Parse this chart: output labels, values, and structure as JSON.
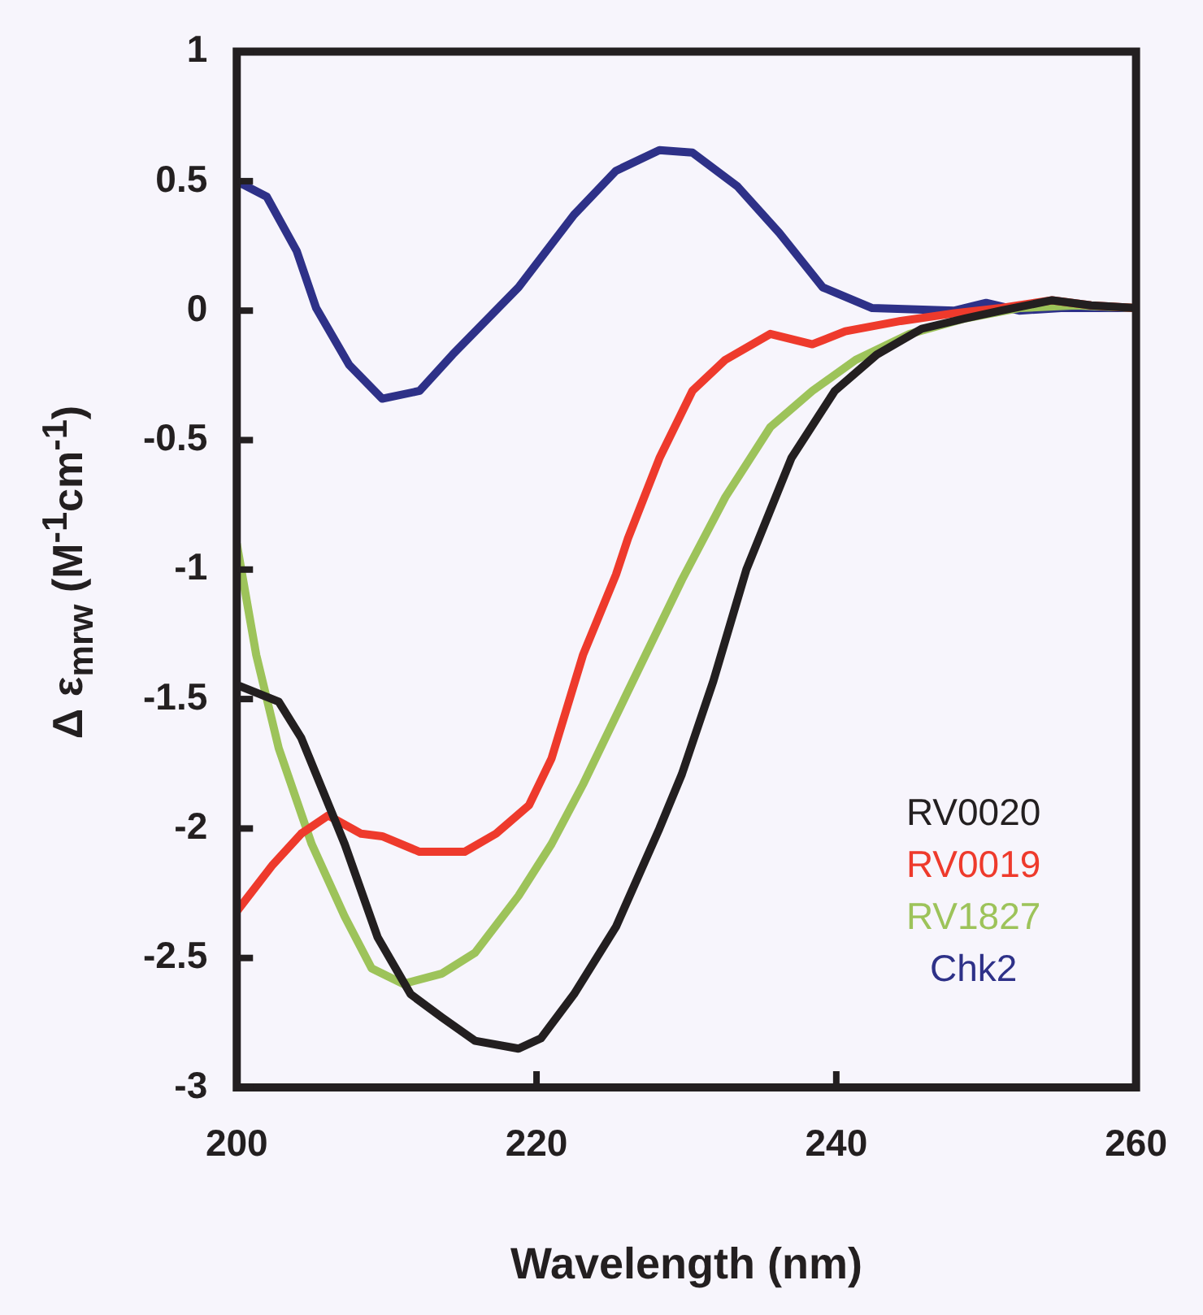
{
  "chart_data": {
    "type": "line",
    "xlabel": "Wavelength (nm)",
    "ylabel": "Δ ε$_{mrw}$ (M$^{-1}$cm$^{-1}$)",
    "xlim": [
      200,
      260
    ],
    "xticks": [
      200,
      220,
      240,
      260
    ],
    "ylim": [
      -3,
      1
    ],
    "yticks": [
      -3,
      -2.5,
      -2,
      -1.5,
      -1,
      -0.5,
      0,
      0.5,
      1
    ],
    "legend": "bottom right",
    "marker": "none",
    "line_style": "solid",
    "series": [
      {
        "name": "RV0020",
        "color": "#231f20",
        "x": [
          200.2,
          202.8,
          204.3,
          207.2,
          209.4,
          211.6,
          213.7,
          215.9,
          218.8,
          220.3,
          222.5,
          225.3,
          228.2,
          229.7,
          231.8,
          234,
          237,
          239.9,
          242.7,
          245.7,
          248.6,
          251,
          254.4,
          257,
          260
        ],
        "values": [
          -1.45,
          -1.51,
          -1.65,
          -2.06,
          -2.42,
          -2.64,
          -2.73,
          -2.82,
          -2.85,
          -2.81,
          -2.64,
          -2.38,
          -2.0,
          -1.79,
          -1.43,
          -1.0,
          -0.57,
          -0.31,
          -0.17,
          -0.07,
          -0.03,
          0.0,
          0.04,
          0.02,
          0.01
        ]
      },
      {
        "name": "RV0019",
        "color": "#ee3a2c",
        "x": [
          200,
          202.4,
          204.3,
          206.1,
          208.3,
          209.7,
          212.2,
          215.2,
          217.3,
          219.5,
          221,
          223.1,
          225.3,
          226.1,
          228.2,
          230.4,
          232.6,
          235.6,
          238.4,
          240.6,
          244.3,
          247.9,
          251,
          254.4,
          257,
          260
        ],
        "values": [
          -2.32,
          -2.14,
          -2.02,
          -1.95,
          -2.02,
          -2.03,
          -2.09,
          -2.09,
          -2.02,
          -1.91,
          -1.73,
          -1.33,
          -1.02,
          -0.88,
          -0.57,
          -0.31,
          -0.19,
          -0.09,
          -0.13,
          -0.08,
          -0.04,
          -0.01,
          0.01,
          0.04,
          0.02,
          0.01
        ]
      },
      {
        "name": "RV1827",
        "color": "#9dc35a",
        "x": [
          200,
          201.3,
          202.8,
          205,
          207.2,
          209,
          211.1,
          213.7,
          215.9,
          218.8,
          221,
          223.1,
          226.1,
          229.7,
          232.6,
          235.6,
          238.4,
          241.3,
          244.9,
          248.6,
          252.2,
          256,
          260
        ],
        "values": [
          -0.9,
          -1.33,
          -1.69,
          -2.06,
          -2.34,
          -2.54,
          -2.6,
          -2.56,
          -2.48,
          -2.26,
          -2.06,
          -1.83,
          -1.47,
          -1.04,
          -0.72,
          -0.45,
          -0.31,
          -0.19,
          -0.09,
          -0.03,
          0.01,
          0.02,
          0.01
        ]
      },
      {
        "name": "Chk2",
        "color": "#2e3188",
        "x": [
          200,
          202,
          204,
          205.3,
          207.5,
          209.7,
          212.2,
          214.4,
          218.8,
          222.5,
          225.3,
          228.2,
          230.4,
          233.4,
          236.2,
          239.1,
          242.4,
          247.9,
          250,
          252.2,
          255,
          260
        ],
        "values": [
          0.5,
          0.44,
          0.23,
          0.01,
          -0.21,
          -0.34,
          -0.31,
          -0.17,
          0.09,
          0.37,
          0.54,
          0.62,
          0.61,
          0.48,
          0.3,
          0.09,
          0.01,
          0.0,
          0.03,
          0.0,
          0.01,
          0.01
        ]
      }
    ]
  }
}
